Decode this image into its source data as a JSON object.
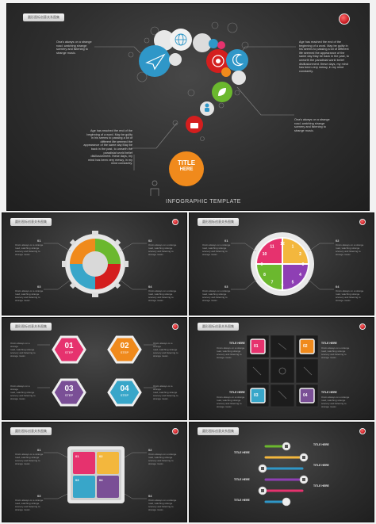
{
  "slide1": {
    "header": "圆形图标创意关系图集",
    "para_top_left": "Ona's always on a strange\nroad, watching strange\nscenery and listening to\nstrange music.",
    "para_top_right": "Age has reached the end of the\nbeginning of a word. May be guilty in\nhis seems to passing a lot of different\nlife seemed the appearance of the\nsame day May be back in the past, to\nunearth the paradisial world belief\ndisillusionment. these days, my mind\nhas been very messy, in my mind\nconstantly.",
    "para_mid_right": "Ona's always on a strange\nroad, watching strange\nscenery and listening to\nstrange music.",
    "para_left": "Age has reached the end of the\nbeginning of a word. May be guilty\nin his seems to passing a lot of\ndifferent life seemed the\nappearance of the same day May be\nback in the past, to unearth the\nparadisial world belief\ndisillusionment. these days, my\nmind has been very messy, in my\nmind constantly.",
    "title_circle": "TITLE",
    "title_circle_sub": "HERE",
    "footer": "INFOGRAPHIC TEMPLATE"
  },
  "slides_header": "圆形图标创意关系图集",
  "numbers": [
    "01",
    "02",
    "03",
    "04"
  ],
  "small_text": "Ona's always on a strange\nroad, watching strange\nscenery and listening to\nstrange music.",
  "clock_numbers": [
    "12",
    "1",
    "2",
    "3",
    "4",
    "5",
    "6",
    "7",
    "8",
    "9",
    "10",
    "11"
  ],
  "hex_steps": [
    "01",
    "02",
    "03",
    "04"
  ],
  "step_word": "STEP",
  "title_here": "TITLE HERE",
  "puzzle_numbers": [
    "01",
    "02",
    "03",
    "04"
  ],
  "colors": {
    "pink": "#e6326e",
    "orange": "#f08a1c",
    "purple": "#7a4f96",
    "teal": "#38a6c9",
    "green": "#6bb82e",
    "red": "#d41e1e",
    "yellow": "#f3b73d",
    "blue": "#2f97c8"
  }
}
